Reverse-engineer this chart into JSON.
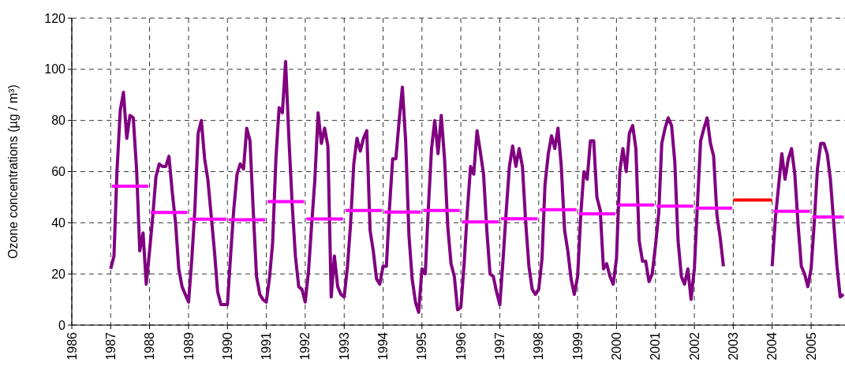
{
  "chart_data": {
    "type": "line",
    "ylabel": "Ozone concentrations (µg / m³)",
    "xlim": [
      "1986",
      "2005-11-15"
    ],
    "xticks": [
      {
        "value": "1986",
        "label": "1986"
      },
      {
        "value": "1987",
        "label": "1987"
      },
      {
        "value": "1988",
        "label": "1988"
      },
      {
        "value": "1989",
        "label": "1989"
      },
      {
        "value": "1990",
        "label": "1990"
      },
      {
        "value": "1991",
        "label": "1991"
      },
      {
        "value": "1992",
        "label": "1992"
      },
      {
        "value": "1993",
        "label": "1993"
      },
      {
        "value": "1994",
        "label": "1994"
      },
      {
        "value": "1995",
        "label": "1995"
      },
      {
        "value": "1996",
        "label": "1996"
      },
      {
        "value": "1997",
        "label": "1997"
      },
      {
        "value": "1998",
        "label": "1998"
      },
      {
        "value": "1999",
        "label": "1999"
      },
      {
        "value": "2000",
        "label": "2000"
      },
      {
        "value": "2001",
        "label": "2001"
      },
      {
        "value": "2002",
        "label": "2002"
      },
      {
        "value": "2003",
        "label": "2003"
      },
      {
        "value": "2004",
        "label": "2004"
      },
      {
        "value": "2005",
        "label": "2005"
      }
    ],
    "ylim": [
      0,
      120
    ],
    "yticks": [
      0,
      20,
      40,
      60,
      80,
      100,
      120
    ],
    "grid": true,
    "line_style": "solid",
    "marker": "none",
    "series": [
      {
        "color": "#800080",
        "x": [
          "1987-01",
          "1987-02",
          "1987-03",
          "1987-04",
          "1987-05",
          "1987-06",
          "1987-07",
          "1987-08",
          "1987-09",
          "1987-10",
          "1987-11",
          "1987-12",
          "1988-01",
          "1988-02",
          "1988-03",
          "1988-04",
          "1988-05",
          "1988-06",
          "1988-07",
          "1988-08",
          "1988-09",
          "1988-10",
          "1988-11",
          "1988-12",
          "1989-01",
          "1989-02",
          "1989-03",
          "1989-04",
          "1989-05",
          "1989-06",
          "1989-07",
          "1989-08",
          "1989-09",
          "1989-10",
          "1989-11",
          "1989-12",
          "1990-01",
          "1990-02",
          "1990-03",
          "1990-04",
          "1990-05",
          "1990-06",
          "1990-07",
          "1990-08",
          "1990-09",
          "1990-10",
          "1990-11",
          "1990-12",
          "1991-01",
          "1991-02",
          "1991-03",
          "1991-04",
          "1991-05",
          "1991-06",
          "1991-07",
          "1991-08",
          "1991-09",
          "1991-10",
          "1991-11",
          "1991-12",
          "1992-01",
          "1992-02",
          "1992-03",
          "1992-04",
          "1992-05",
          "1992-06",
          "1992-07",
          "1992-08",
          "1992-09",
          "1992-10",
          "1992-11",
          "1992-12",
          "1993-01",
          "1993-02",
          "1993-03",
          "1993-04",
          "1993-05",
          "1993-06",
          "1993-07",
          "1993-08",
          "1993-09",
          "1993-10",
          "1993-11",
          "1993-12",
          "1994-01",
          "1994-02",
          "1994-03",
          "1994-04",
          "1994-05",
          "1994-06",
          "1994-07",
          "1994-08",
          "1994-09",
          "1994-10",
          "1994-11",
          "1994-12",
          "1995-01",
          "1995-02",
          "1995-03",
          "1995-04",
          "1995-05",
          "1995-06",
          "1995-07",
          "1995-08",
          "1995-09",
          "1995-10",
          "1995-11",
          "1995-12",
          "1996-01",
          "1996-02",
          "1996-03",
          "1996-04",
          "1996-05",
          "1996-06",
          "1996-07",
          "1996-08",
          "1996-09",
          "1996-10",
          "1996-11",
          "1996-12",
          "1997-01",
          "1997-02",
          "1997-03",
          "1997-04",
          "1997-05",
          "1997-06",
          "1997-07",
          "1997-08",
          "1997-09",
          "1997-10",
          "1997-11",
          "1997-12",
          "1998-01",
          "1998-02",
          "1998-03",
          "1998-04",
          "1998-05",
          "1998-06",
          "1998-07",
          "1998-08",
          "1998-09",
          "1998-10",
          "1998-11",
          "1998-12",
          "1999-01",
          "1999-02",
          "1999-03",
          "1999-04",
          "1999-05",
          "1999-06",
          "1999-07",
          "1999-08",
          "1999-09",
          "1999-10",
          "1999-11",
          "1999-12",
          "2000-01",
          "2000-02",
          "2000-03",
          "2000-04",
          "2000-05",
          "2000-06",
          "2000-07",
          "2000-08",
          "2000-09",
          "2000-10",
          "2000-11",
          "2000-12",
          "2001-01",
          "2001-02",
          "2001-03",
          "2001-04",
          "2001-05",
          "2001-06",
          "2001-07",
          "2001-08",
          "2001-09",
          "2001-10",
          "2001-11",
          "2001-12",
          "2002-01",
          "2002-02",
          "2002-03",
          "2002-04",
          "2002-05",
          "2002-06",
          "2002-07",
          "2002-08",
          "2002-09",
          "2002-10",
          "2003-06",
          "2004-01",
          "2004-02",
          "2004-03",
          "2004-04",
          "2004-05",
          "2004-06",
          "2004-07",
          "2004-08",
          "2004-09",
          "2004-10",
          "2004-11",
          "2004-12",
          "2005-01",
          "2005-02",
          "2005-03",
          "2005-04",
          "2005-05",
          "2005-06",
          "2005-07",
          "2005-08",
          "2005-09",
          "2005-10",
          "2005-11"
        ],
        "values": [
          22,
          27,
          60,
          84,
          91,
          73,
          82,
          81,
          61,
          29,
          36,
          16,
          29,
          43,
          58,
          63,
          62,
          62,
          66,
          52,
          40,
          22,
          15,
          12,
          9,
          26,
          45,
          75,
          80,
          65,
          57,
          43,
          29,
          13,
          8,
          8,
          8,
          28,
          45,
          59,
          63,
          61,
          77,
          72,
          44,
          19,
          12,
          10,
          9,
          19,
          32,
          65,
          85,
          83,
          103,
          73,
          47,
          27,
          15,
          14,
          9,
          21,
          39,
          57,
          83,
          71,
          77,
          70,
          11,
          27,
          15,
          12,
          11,
          23,
          39,
          63,
          73,
          68,
          73,
          76,
          37,
          29,
          18,
          16,
          23,
          23,
          45,
          65,
          65,
          80,
          93,
          72,
          35,
          18,
          9,
          5,
          22,
          20,
          45,
          69,
          80,
          67,
          82,
          65,
          38,
          24,
          19,
          6,
          7,
          24,
          44,
          62,
          59,
          76,
          68,
          59,
          37,
          20,
          19,
          13,
          8,
          26,
          44,
          62,
          70,
          62,
          69,
          62,
          40,
          23,
          14,
          12,
          14,
          26,
          55,
          67,
          74,
          69,
          77,
          62,
          37,
          29,
          18,
          12,
          19,
          44,
          60,
          57,
          72,
          72,
          50,
          45,
          22,
          24,
          19,
          16,
          26,
          60,
          69,
          60,
          75,
          78,
          69,
          33,
          25,
          25,
          17,
          20,
          31,
          44,
          71,
          77,
          81,
          78,
          64,
          33,
          19,
          16,
          22,
          10,
          22,
          49,
          72,
          77,
          81,
          71,
          66,
          43,
          34,
          23,
          null,
          23,
          42,
          54,
          67,
          57,
          65,
          69,
          59,
          39,
          23,
          20,
          15,
          22,
          41,
          61,
          71,
          71,
          67,
          57,
          40,
          23,
          11,
          12
        ]
      },
      {
        "type": "step",
        "color": "#ff00ff",
        "x": [
          "1987",
          "1988",
          "1989",
          "1990",
          "1991",
          "1992",
          "1993",
          "1994",
          "1995",
          "1996",
          "1997",
          "1998",
          "1999",
          "2000",
          "2001",
          "2002",
          "2003",
          "2004",
          "2005",
          "2005-11-15"
        ],
        "values": [
          54.3,
          44.0,
          41.4,
          41.2,
          48.3,
          41.5,
          44.8,
          44.2,
          44.8,
          40.3,
          41.6,
          45.1,
          43.5,
          47.0,
          46.5,
          45.7,
          null,
          44.5,
          42.3,
          42.3
        ]
      },
      {
        "color": "#ff0000",
        "x": [
          "2003",
          "2004"
        ],
        "values": [
          48.9,
          48.9
        ]
      }
    ]
  }
}
